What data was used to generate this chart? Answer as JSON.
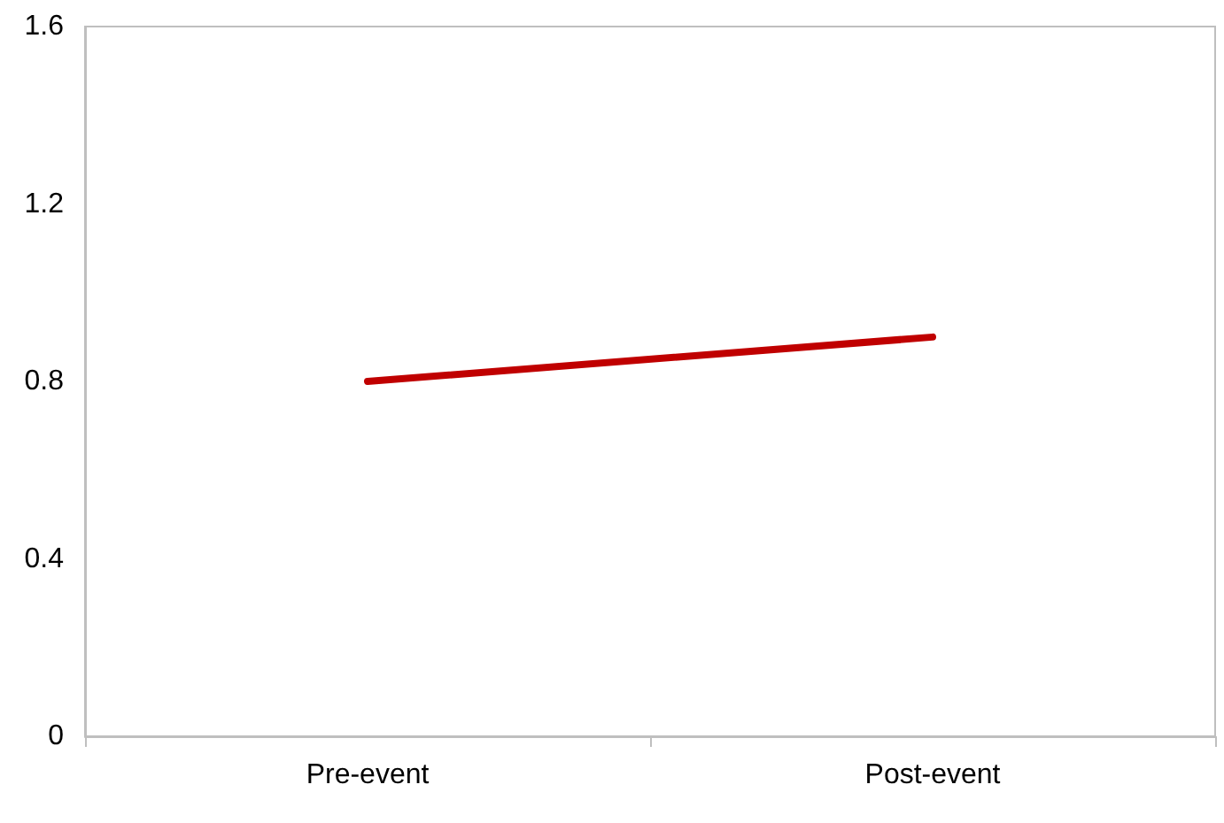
{
  "chart_data": {
    "type": "line",
    "categories": [
      "Pre-event",
      "Post-event"
    ],
    "series": [
      {
        "color": "#c00000",
        "values": [
          0.8,
          0.9
        ]
      }
    ],
    "ylim": [
      0,
      1.6
    ],
    "yticks": [
      0,
      0.4,
      0.8,
      1.2,
      1.6
    ],
    "grid": false,
    "marker": "none",
    "line_style": "solid"
  }
}
